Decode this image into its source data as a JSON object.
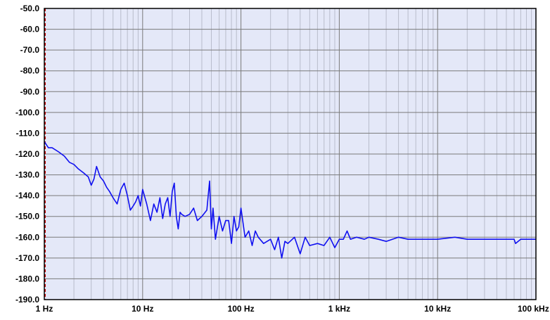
{
  "chart_data": {
    "type": "line",
    "title": "",
    "xlabel": "",
    "ylabel": "",
    "x_scale": "log",
    "xlim": [
      1,
      100000
    ],
    "ylim": [
      -190,
      -50
    ],
    "grid": true,
    "colors": {
      "plot_background": "#e4e8f8",
      "grid": "#7a7a7a",
      "series": "#1010f0",
      "left_axis_marker": "#cc0000"
    },
    "x_tick_labels": [
      "1 Hz",
      "10 Hz",
      "100 Hz",
      "1 kHz",
      "10 kHz",
      "100 kHz"
    ],
    "y_tick_labels": [
      "-50.0",
      "-60.0",
      "-70.0",
      "-80.0",
      "-90.0",
      "-100.0",
      "-110.0",
      "-120.0",
      "-130.0",
      "-140.0",
      "-150.0",
      "-160.0",
      "-170.0",
      "-180.0",
      "-190.0"
    ],
    "series": [
      {
        "x": [
          1,
          1.1,
          1.2,
          1.4,
          1.6,
          1.8,
          2.0,
          2.2,
          2.5,
          2.8,
          3.0,
          3.2,
          3.4,
          3.7,
          4.0,
          4.3,
          4.6,
          5.0,
          5.5,
          6.0,
          6.5,
          7.0,
          7.5,
          8.0,
          8.5,
          9.0,
          9.5,
          10,
          11,
          12,
          13,
          14,
          15,
          16,
          17,
          18,
          19,
          20,
          21,
          22,
          23,
          24,
          25,
          27,
          30,
          33,
          36,
          40,
          45,
          48,
          50,
          52,
          55,
          60,
          65,
          70,
          75,
          80,
          85,
          90,
          95,
          100,
          110,
          120,
          130,
          140,
          150,
          170,
          200,
          220,
          240,
          260,
          280,
          300,
          350,
          400,
          450,
          500,
          600,
          700,
          800,
          900,
          1000,
          1100,
          1200,
          1300,
          1500,
          1800,
          2000,
          2500,
          3000,
          4000,
          5000,
          7000,
          10000,
          15000,
          20000,
          30000,
          40000,
          50000,
          60000,
          62000,
          70000,
          80000,
          100000
        ],
        "y": [
          -114,
          -117,
          -117,
          -119,
          -121,
          -124,
          -125,
          -127,
          -129,
          -131,
          -135,
          -132,
          -126,
          -131,
          -133,
          -136,
          -138,
          -141,
          -144,
          -137,
          -134,
          -140,
          -147,
          -145,
          -143,
          -140,
          -145,
          -137,
          -144,
          -152,
          -144,
          -148,
          -141,
          -151,
          -144,
          -141,
          -150,
          -138,
          -134,
          -150,
          -156,
          -148,
          -149,
          -150,
          -149,
          -146,
          -152,
          -150,
          -147,
          -133,
          -156,
          -146,
          -161,
          -150,
          -157,
          -152,
          -152,
          -163,
          -150,
          -157,
          -155,
          -146,
          -160,
          -157,
          -164,
          -157,
          -160,
          -163,
          -161,
          -166,
          -160,
          -170,
          -162,
          -163,
          -160,
          -168,
          -160,
          -164,
          -163,
          -164,
          -160,
          -165,
          -161,
          -161,
          -157,
          -161,
          -160,
          -161,
          -160,
          -161,
          -162,
          -160,
          -161,
          -161,
          -161,
          -160,
          -161,
          -161,
          -161,
          -161,
          -161,
          -163,
          -161,
          -161,
          -161
        ]
      }
    ]
  }
}
